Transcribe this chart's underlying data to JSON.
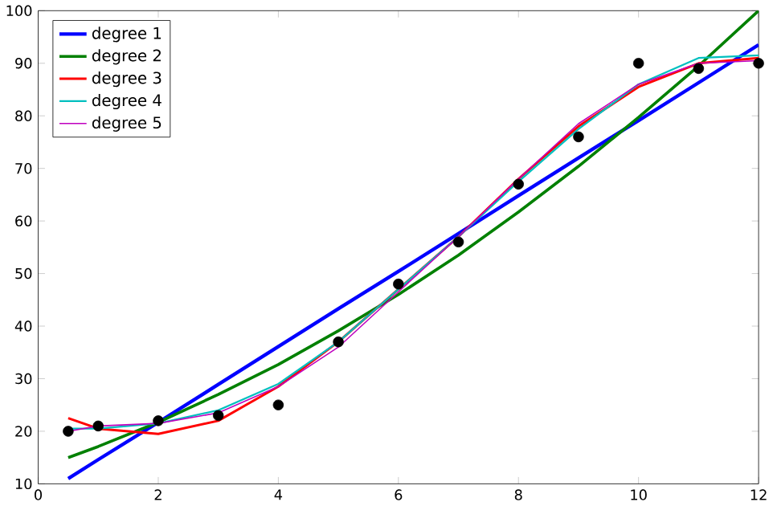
{
  "chart_data": {
    "type": "line",
    "xlim": [
      0,
      12
    ],
    "ylim": [
      10,
      100
    ],
    "xticks": [
      0,
      2,
      4,
      6,
      8,
      10,
      12
    ],
    "yticks": [
      10,
      20,
      30,
      40,
      50,
      60,
      70,
      80,
      90,
      100
    ],
    "legend": "top left",
    "grid": false,
    "series": [
      {
        "type": "scatter",
        "marker": "circle",
        "color": "#000000",
        "x": [
          0.5,
          1,
          2,
          3,
          4,
          5,
          6,
          7,
          8,
          9,
          10,
          11,
          12
        ],
        "values": [
          20,
          21,
          22,
          23,
          25,
          37,
          48,
          56,
          67,
          76,
          90,
          89,
          90
        ]
      },
      {
        "name": "degree 1",
        "color": "#0000ff",
        "x": [
          0.5,
          1,
          2,
          3,
          4,
          5,
          6,
          7,
          8,
          9,
          10,
          11,
          12
        ],
        "values": [
          11,
          14.6,
          21.7,
          28.9,
          36.1,
          43.3,
          50.4,
          57.6,
          64.8,
          72.0,
          79.1,
          86.3,
          93.5
        ]
      },
      {
        "name": "degree 2",
        "color": "#008000",
        "x": [
          0.5,
          1,
          2,
          3,
          4,
          5,
          6,
          7,
          8,
          9,
          10,
          11,
          12
        ],
        "values": [
          15.0,
          17.1,
          21.7,
          27.0,
          32.7,
          39.1,
          46,
          53.5,
          61.7,
          70.4,
          79.7,
          89.5,
          100
        ]
      },
      {
        "name": "degree 3",
        "color": "#ff0000",
        "x": [
          0.5,
          1,
          2,
          3,
          4,
          5,
          6,
          7,
          8,
          9,
          10,
          11,
          12
        ],
        "values": [
          22.5,
          20.5,
          19.5,
          22,
          28.5,
          37,
          47,
          57,
          68,
          78,
          85.5,
          90,
          91
        ]
      },
      {
        "name": "degree 4",
        "color": "#00bfbf",
        "x": [
          0.5,
          1,
          2,
          3,
          4,
          5,
          6,
          7,
          8,
          9,
          10,
          11,
          12
        ],
        "values": [
          20.5,
          20.5,
          21.5,
          24,
          29,
          37,
          47,
          57,
          67.5,
          77.5,
          86,
          91,
          91.5
        ]
      },
      {
        "name": "degree 5",
        "color": "#bf00bf",
        "x": [
          0.5,
          1,
          2,
          3,
          4,
          5,
          6,
          7,
          8,
          9,
          10,
          11,
          12
        ],
        "values": [
          20,
          21,
          21.5,
          23.5,
          28.5,
          36,
          46.5,
          57,
          68,
          78.5,
          86,
          90,
          90.5
        ]
      }
    ]
  }
}
